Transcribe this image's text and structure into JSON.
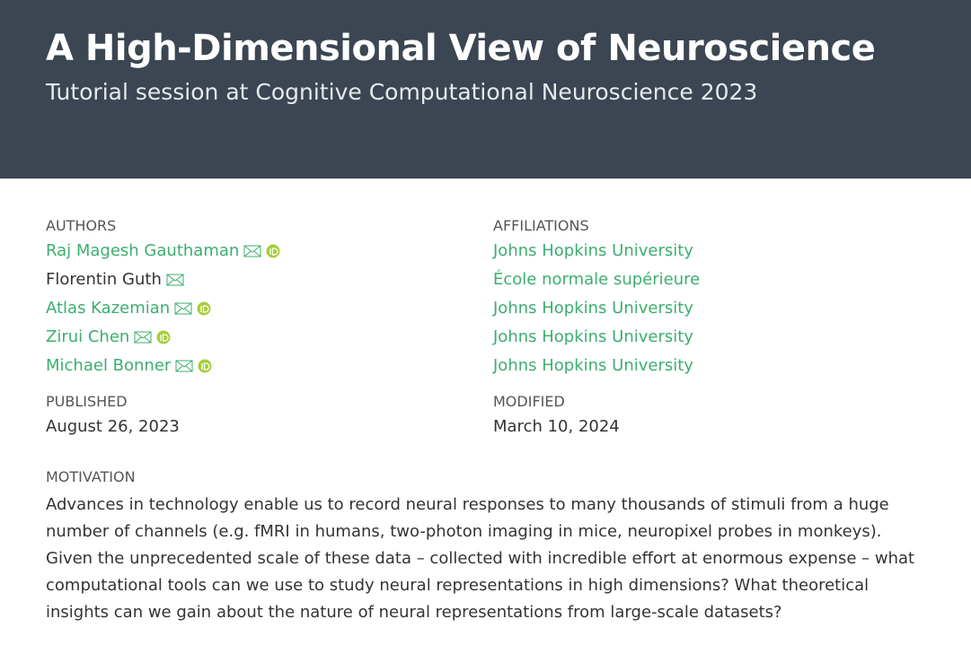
{
  "header": {
    "title": "A High-Dimensional View of Neuroscience",
    "subtitle": "Tutorial session at Cognitive Computational Neuroscience 2023"
  },
  "byline": {
    "authors_label": "AUTHORS",
    "affiliations_label": "AFFILIATIONS",
    "authors": [
      {
        "name": "Raj Magesh Gauthaman",
        "affiliation": "Johns Hopkins University"
      },
      {
        "name": "Florentin Guth",
        "affiliation": "École normale supérieure"
      },
      {
        "name": "Atlas Kazemian",
        "affiliation": "Johns Hopkins University"
      },
      {
        "name": "Zirui Chen",
        "affiliation": "Johns Hopkins University"
      },
      {
        "name": "Michael Bonner",
        "affiliation": "Johns Hopkins University"
      }
    ],
    "published_label": "PUBLISHED",
    "published": "August 26, 2023",
    "modified_label": "MODIFIED",
    "modified": "March 10, 2024"
  },
  "motivation": {
    "label": "MOTIVATION",
    "text": "Advances in technology enable us to record neural responses to many thousands of stimuli from a huge number of channels (e.g. fMRI in humans, two-photon imaging in mice, neuropixel probes in monkeys). Given the unprecedented scale of these data – collected with incredible effort at enormous expense – what computational tools can we use to study neural representations in high dimensions? What theoretical insights can we gain about the nature of neural representations from large-scale datasets?"
  }
}
